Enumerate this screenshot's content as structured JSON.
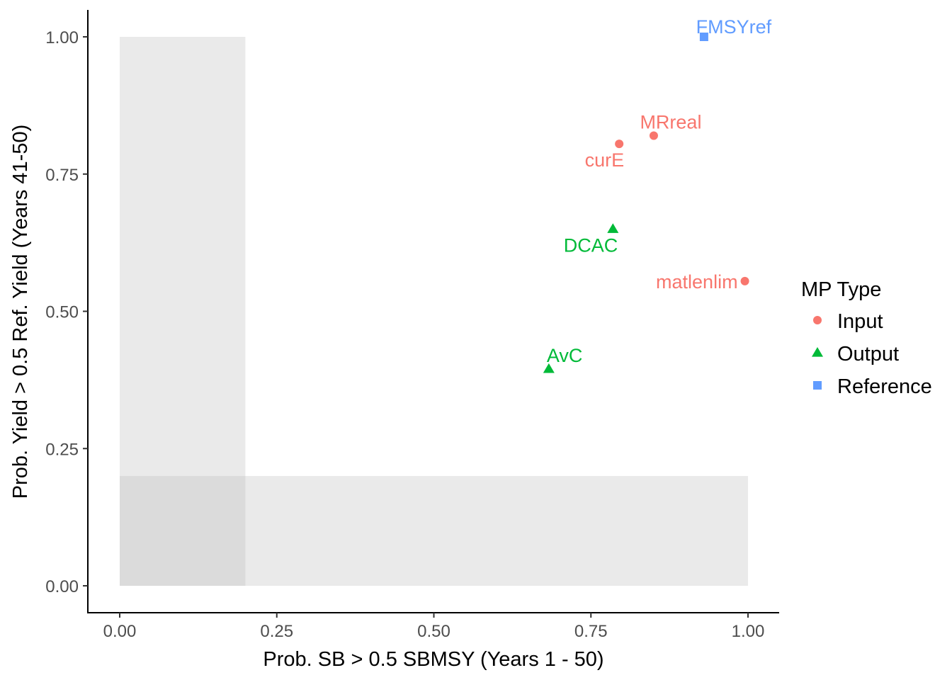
{
  "chart_data": {
    "type": "scatter",
    "title": "",
    "xlabel": "Prob. SB > 0.5 SBMSY (Years 1 - 50)",
    "ylabel": "Prob. Yield > 0.5 Ref. Yield (Years 41-50)",
    "xlim": [
      -0.05,
      1.05
    ],
    "ylim": [
      -0.05,
      1.05
    ],
    "x_ticks": [
      0,
      0.25,
      0.5,
      0.75,
      1
    ],
    "x_tick_labels": [
      "0.00",
      "0.25",
      "0.50",
      "0.75",
      "1.00"
    ],
    "y_ticks": [
      0,
      0.25,
      0.5,
      0.75,
      1
    ],
    "y_tick_labels": [
      "0.00",
      "0.25",
      "0.50",
      "0.75",
      "1.00"
    ],
    "grid": false,
    "shaded_regions": [
      {
        "x": [
          0,
          0.2
        ],
        "y": [
          0,
          1
        ]
      },
      {
        "x": [
          0,
          1
        ],
        "y": [
          0,
          0.2
        ]
      }
    ],
    "legend": {
      "title": "MP Type",
      "position": "right",
      "entries": [
        {
          "label": "Input",
          "shape": "circle",
          "color": "#F8766D"
        },
        {
          "label": "Output",
          "shape": "triangle",
          "color": "#00BA38"
        },
        {
          "label": "Reference",
          "shape": "square",
          "color": "#619CFF"
        }
      ]
    },
    "points": [
      {
        "label": "FMSYref",
        "x": 0.93,
        "y": 1.0,
        "type": "Reference",
        "label_anchor": "below-right"
      },
      {
        "label": "MRreal",
        "x": 0.85,
        "y": 0.82,
        "type": "Input",
        "label_anchor": "above"
      },
      {
        "label": "curE",
        "x": 0.795,
        "y": 0.805,
        "type": "Input",
        "label_anchor": "below-left"
      },
      {
        "label": "DCAC",
        "x": 0.785,
        "y": 0.65,
        "type": "Output",
        "label_anchor": "below-left"
      },
      {
        "label": "matlenlim",
        "x": 0.995,
        "y": 0.555,
        "type": "Input",
        "label_anchor": "left"
      },
      {
        "label": "AvC",
        "x": 0.683,
        "y": 0.395,
        "type": "Output",
        "label_anchor": "above-right"
      }
    ]
  }
}
